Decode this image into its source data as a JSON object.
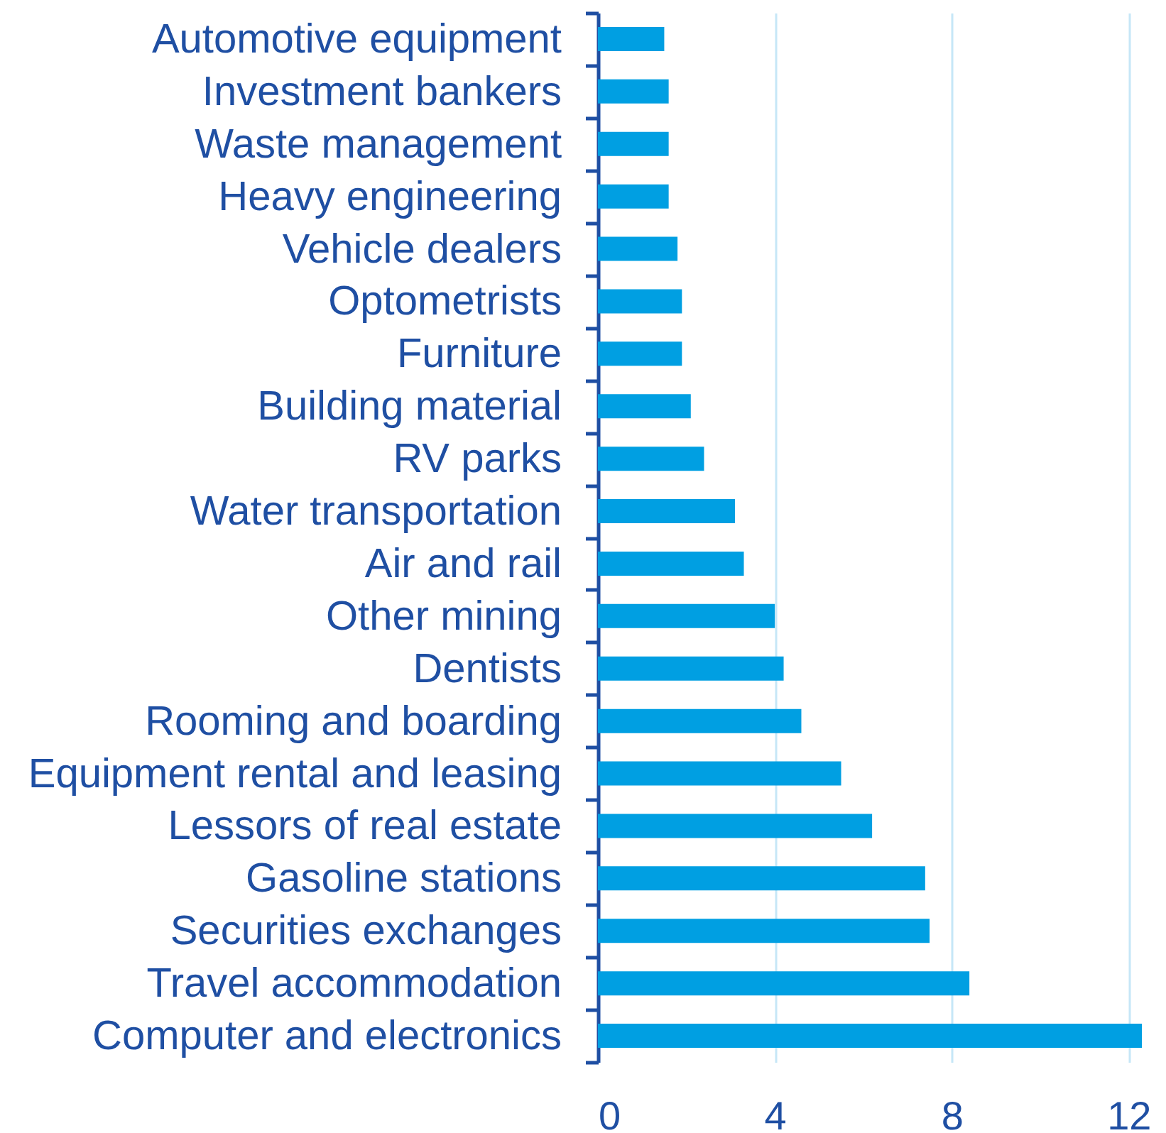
{
  "chart_data": {
    "type": "bar",
    "orientation": "horizontal",
    "categories": [
      "Automotive equipment",
      "Investment bankers",
      "Waste management",
      "Heavy engineering",
      "Vehicle dealers",
      "Optometrists",
      "Furniture",
      "Building material",
      "RV parks",
      "Water transportation",
      "Air and rail",
      "Other mining",
      "Dentists",
      "Rooming and boarding",
      "Equipment rental and leasing",
      "Lessors of real estate",
      "Gasoline stations",
      "Securities exchanges",
      "Travel accommodation",
      "Computer and electronics"
    ],
    "values": [
      1.5,
      1.6,
      1.6,
      1.6,
      1.8,
      1.9,
      1.9,
      2.1,
      2.4,
      3.1,
      3.3,
      4.0,
      4.2,
      4.6,
      5.5,
      6.2,
      7.4,
      7.5,
      8.4,
      12.3
    ],
    "color": "#009fe2",
    "xlim": [
      0,
      12.3
    ],
    "xticks": [
      0,
      4,
      8,
      12
    ],
    "grid": "x"
  }
}
